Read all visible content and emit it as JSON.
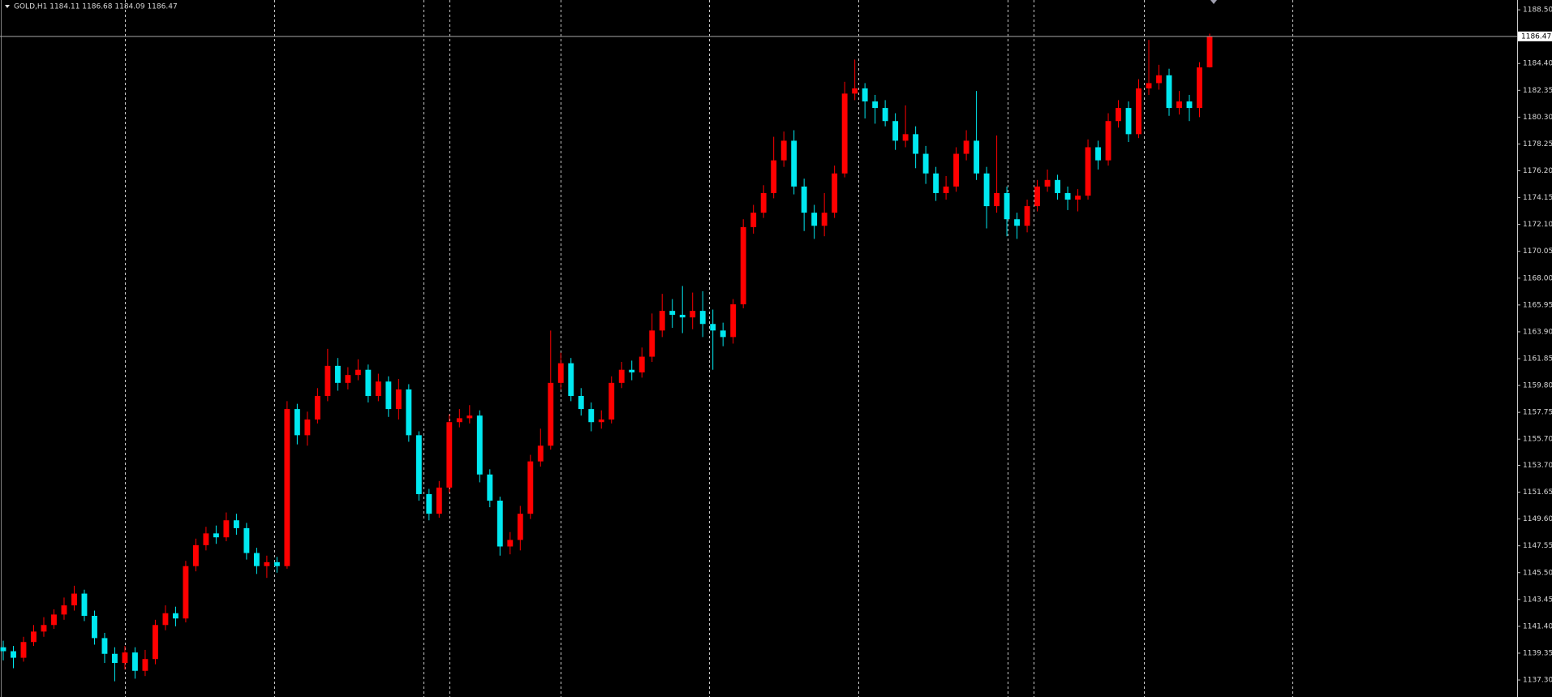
{
  "chart_data": {
    "type": "candlestick",
    "title": "GOLD,H1  1184.11 1186.68 1184.09 1186.47",
    "up_color": "#ff0000",
    "down_color": "#00e8f0",
    "grid": false,
    "ylim": [
      1136.0,
      1189.25
    ],
    "yticks": [
      {
        "value": 1188.5,
        "label": "1188.50"
      },
      {
        "value": 1184.4,
        "label": "1184.40"
      },
      {
        "value": 1182.35,
        "label": "1182.35"
      },
      {
        "value": 1180.3,
        "label": "1180.30"
      },
      {
        "value": 1178.25,
        "label": "1178.25"
      },
      {
        "value": 1176.2,
        "label": "1176.20"
      },
      {
        "value": 1174.15,
        "label": "1174.15"
      },
      {
        "value": 1172.1,
        "label": "1172.10"
      },
      {
        "value": 1170.05,
        "label": "1170.05"
      },
      {
        "value": 1168,
        "label": "1168.00"
      },
      {
        "value": 1165.95,
        "label": "1165.95"
      },
      {
        "value": 1163.9,
        "label": "1163.90"
      },
      {
        "value": 1161.85,
        "label": "1161.85"
      },
      {
        "value": 1159.8,
        "label": "1159.80"
      },
      {
        "value": 1157.75,
        "label": "1157.75"
      },
      {
        "value": 1155.7,
        "label": "1155.70"
      },
      {
        "value": 1153.7,
        "label": "1153.70"
      },
      {
        "value": 1151.65,
        "label": "1151.65"
      },
      {
        "value": 1149.6,
        "label": "1149.60"
      },
      {
        "value": 1147.55,
        "label": "1147.55"
      },
      {
        "value": 1145.5,
        "label": "1145.50"
      },
      {
        "value": 1143.45,
        "label": "1143.45"
      },
      {
        "value": 1141.4,
        "label": "1141.40"
      },
      {
        "value": 1139.35,
        "label": "1139.35"
      },
      {
        "value": 1137.3,
        "label": "1137.30"
      }
    ],
    "current_price": {
      "value": 1186.47,
      "label": "1186.47"
    },
    "candles": [
      [
        1139.8,
        1140.3,
        1138.8,
        1139.5
      ],
      [
        1139.5,
        1139.9,
        1138.2,
        1139.0
      ],
      [
        1139.0,
        1140.6,
        1138.7,
        1140.2
      ],
      [
        1140.2,
        1141.5,
        1139.9,
        1141.0
      ],
      [
        1141.0,
        1142.1,
        1140.6,
        1141.5
      ],
      [
        1141.5,
        1142.7,
        1141.2,
        1142.3
      ],
      [
        1142.3,
        1143.6,
        1141.9,
        1143.0
      ],
      [
        1143.0,
        1144.5,
        1142.6,
        1143.9
      ],
      [
        1143.9,
        1144.2,
        1141.8,
        1142.2
      ],
      [
        1142.2,
        1142.6,
        1140.0,
        1140.5
      ],
      [
        1140.5,
        1140.9,
        1138.6,
        1139.3
      ],
      [
        1139.3,
        1139.8,
        1137.2,
        1138.6
      ],
      [
        1138.6,
        1139.9,
        1138.1,
        1139.4
      ],
      [
        1139.4,
        1139.8,
        1137.4,
        1138.0
      ],
      [
        1138.0,
        1139.6,
        1137.6,
        1138.9
      ],
      [
        1138.9,
        1141.9,
        1138.5,
        1141.5
      ],
      [
        1141.5,
        1143.0,
        1141.1,
        1142.4
      ],
      [
        1142.4,
        1142.9,
        1141.4,
        1142.0
      ],
      [
        1142.0,
        1146.4,
        1141.7,
        1146.0
      ],
      [
        1146.0,
        1148.1,
        1145.6,
        1147.6
      ],
      [
        1147.6,
        1149.0,
        1147.2,
        1148.5
      ],
      [
        1148.5,
        1149.1,
        1147.7,
        1148.2
      ],
      [
        1148.2,
        1150.1,
        1147.9,
        1149.5
      ],
      [
        1149.5,
        1150.0,
        1148.4,
        1148.9
      ],
      [
        1148.9,
        1149.3,
        1146.5,
        1147.0
      ],
      [
        1147.0,
        1147.4,
        1145.4,
        1146.0
      ],
      [
        1146.0,
        1146.8,
        1145.1,
        1146.3
      ],
      [
        1146.3,
        1146.7,
        1145.5,
        1146.0
      ],
      [
        1146.0,
        1158.6,
        1145.8,
        1158.0
      ],
      [
        1158.0,
        1158.4,
        1155.3,
        1156.0
      ],
      [
        1156.0,
        1157.8,
        1155.2,
        1157.2
      ],
      [
        1157.2,
        1159.6,
        1156.9,
        1159.0
      ],
      [
        1159.0,
        1162.6,
        1158.6,
        1161.3
      ],
      [
        1161.3,
        1161.9,
        1159.4,
        1160.0
      ],
      [
        1160.0,
        1161.2,
        1159.5,
        1160.6
      ],
      [
        1160.6,
        1161.8,
        1160.2,
        1161.0
      ],
      [
        1161.0,
        1161.4,
        1158.5,
        1159.0
      ],
      [
        1159.0,
        1160.7,
        1158.6,
        1160.1
      ],
      [
        1160.1,
        1160.5,
        1157.4,
        1158.0
      ],
      [
        1158.0,
        1160.3,
        1157.2,
        1159.5
      ],
      [
        1159.5,
        1159.9,
        1155.5,
        1156.0
      ],
      [
        1156.0,
        1156.3,
        1151.0,
        1151.5
      ],
      [
        1151.5,
        1151.9,
        1149.5,
        1150.0
      ],
      [
        1150.0,
        1152.5,
        1149.7,
        1152.0
      ],
      [
        1152.0,
        1157.6,
        1151.6,
        1157.0
      ],
      [
        1157.0,
        1158.0,
        1156.6,
        1157.3
      ],
      [
        1157.3,
        1158.3,
        1156.9,
        1157.5
      ],
      [
        1157.5,
        1157.9,
        1152.4,
        1153.0
      ],
      [
        1153.0,
        1153.4,
        1150.5,
        1151.0
      ],
      [
        1151.0,
        1151.3,
        1146.8,
        1147.5
      ],
      [
        1147.5,
        1148.6,
        1146.9,
        1148.0
      ],
      [
        1148.0,
        1150.6,
        1147.2,
        1150.0
      ],
      [
        1150.0,
        1154.5,
        1149.6,
        1154.0
      ],
      [
        1154.0,
        1156.5,
        1153.6,
        1155.2
      ],
      [
        1155.2,
        1164.0,
        1154.9,
        1160.0
      ],
      [
        1160.0,
        1162.3,
        1159.5,
        1161.5
      ],
      [
        1161.5,
        1161.9,
        1158.6,
        1159.0
      ],
      [
        1159.0,
        1159.6,
        1157.5,
        1158.0
      ],
      [
        1158.0,
        1158.5,
        1156.3,
        1157.0
      ],
      [
        1157.0,
        1157.9,
        1156.5,
        1157.2
      ],
      [
        1157.2,
        1160.5,
        1156.9,
        1160.0
      ],
      [
        1160.0,
        1161.6,
        1159.6,
        1161.0
      ],
      [
        1161.0,
        1161.7,
        1160.2,
        1160.8
      ],
      [
        1160.8,
        1162.7,
        1160.4,
        1162.0
      ],
      [
        1162.0,
        1165.3,
        1161.6,
        1164.0
      ],
      [
        1164.0,
        1166.8,
        1163.5,
        1165.5
      ],
      [
        1165.5,
        1166.4,
        1164.2,
        1165.2
      ],
      [
        1165.2,
        1167.4,
        1163.8,
        1165.0
      ],
      [
        1165.0,
        1166.9,
        1164.1,
        1165.5
      ],
      [
        1165.5,
        1167.0,
        1163.5,
        1164.5
      ],
      [
        1164.5,
        1165.6,
        1161.0,
        1164.0
      ],
      [
        1164.0,
        1164.6,
        1162.8,
        1163.5
      ],
      [
        1163.5,
        1166.4,
        1163.0,
        1166.0
      ],
      [
        1166.0,
        1172.5,
        1165.7,
        1171.9
      ],
      [
        1171.9,
        1173.6,
        1171.4,
        1173.0
      ],
      [
        1173.0,
        1175.1,
        1172.6,
        1174.5
      ],
      [
        1174.5,
        1178.8,
        1174.1,
        1177.0
      ],
      [
        1177.0,
        1179.2,
        1176.5,
        1178.5
      ],
      [
        1178.5,
        1179.3,
        1174.4,
        1175.0
      ],
      [
        1175.0,
        1175.6,
        1171.6,
        1173.0
      ],
      [
        1173.0,
        1173.6,
        1171.0,
        1172.0
      ],
      [
        1172.0,
        1174.5,
        1171.2,
        1173.0
      ],
      [
        1173.0,
        1176.6,
        1172.6,
        1176.0
      ],
      [
        1176.0,
        1183.0,
        1175.7,
        1182.1
      ],
      [
        1182.1,
        1184.7,
        1181.6,
        1182.5
      ],
      [
        1182.5,
        1182.9,
        1180.2,
        1181.5
      ],
      [
        1181.5,
        1182.0,
        1179.8,
        1181.0
      ],
      [
        1181.0,
        1181.6,
        1179.6,
        1180.0
      ],
      [
        1180.0,
        1180.6,
        1177.8,
        1178.5
      ],
      [
        1178.5,
        1181.2,
        1178.0,
        1179.0
      ],
      [
        1179.0,
        1179.6,
        1176.4,
        1177.5
      ],
      [
        1177.5,
        1178.1,
        1175.2,
        1176.0
      ],
      [
        1176.0,
        1176.5,
        1173.9,
        1174.5
      ],
      [
        1174.5,
        1175.8,
        1174.0,
        1175.0
      ],
      [
        1175.0,
        1178.0,
        1174.6,
        1177.5
      ],
      [
        1177.5,
        1179.3,
        1177.0,
        1178.5
      ],
      [
        1178.5,
        1182.3,
        1175.5,
        1176.0
      ],
      [
        1176.0,
        1176.5,
        1171.8,
        1173.5
      ],
      [
        1173.5,
        1178.9,
        1173.0,
        1174.5
      ],
      [
        1174.5,
        1175.0,
        1171.2,
        1172.5
      ],
      [
        1172.5,
        1173.0,
        1171.0,
        1172.0
      ],
      [
        1172.0,
        1174.0,
        1171.5,
        1173.5
      ],
      [
        1173.5,
        1175.5,
        1173.1,
        1175.0
      ],
      [
        1175.0,
        1176.3,
        1174.6,
        1175.5
      ],
      [
        1175.5,
        1175.9,
        1174.0,
        1174.5
      ],
      [
        1174.5,
        1175.0,
        1173.2,
        1174.0
      ],
      [
        1174.0,
        1174.8,
        1173.1,
        1174.3
      ],
      [
        1174.3,
        1178.6,
        1174.0,
        1178.0
      ],
      [
        1178.0,
        1178.5,
        1176.3,
        1177.0
      ],
      [
        1177.0,
        1180.6,
        1176.6,
        1180.0
      ],
      [
        1180.0,
        1181.6,
        1179.5,
        1181.0
      ],
      [
        1181.0,
        1181.5,
        1178.4,
        1179.0
      ],
      [
        1179.0,
        1183.2,
        1178.7,
        1182.5
      ],
      [
        1182.5,
        1186.2,
        1182.0,
        1182.9
      ],
      [
        1182.9,
        1184.3,
        1182.4,
        1183.5
      ],
      [
        1183.5,
        1184.0,
        1180.4,
        1181.0
      ],
      [
        1181.0,
        1182.3,
        1180.5,
        1181.5
      ],
      [
        1181.5,
        1182.0,
        1180.0,
        1181.0
      ],
      [
        1181.0,
        1184.5,
        1180.3,
        1184.1
      ],
      [
        1184.11,
        1186.68,
        1184.09,
        1186.47
      ]
    ]
  }
}
